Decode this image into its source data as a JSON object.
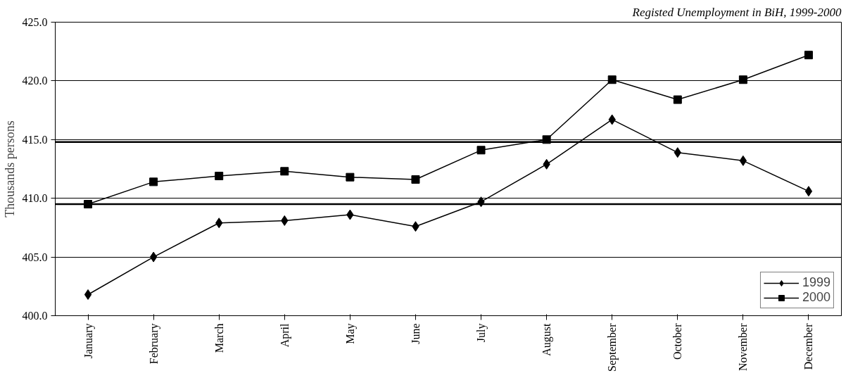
{
  "chart_data": {
    "type": "line",
    "title": "Registed Unemployment in BiH, 1999-2000",
    "ylabel": "Thousands persons",
    "categories": [
      "January",
      "February",
      "March",
      "April",
      "May",
      "June",
      "July",
      "August",
      "September",
      "October",
      "November",
      "December"
    ],
    "series": [
      {
        "name": "1999",
        "color": "#000000",
        "marker": "diamond",
        "values": [
          401.8,
          405.0,
          407.9,
          408.1,
          408.6,
          407.6,
          409.7,
          412.9,
          416.7,
          413.9,
          413.2,
          410.6
        ]
      },
      {
        "name": "2000",
        "color": "#000000",
        "marker": "square",
        "values": [
          409.5,
          411.4,
          411.9,
          412.3,
          411.8,
          411.6,
          414.1,
          415.0,
          420.1,
          418.4,
          420.1,
          422.2
        ]
      }
    ],
    "ylim": [
      400,
      425
    ],
    "yticks": [
      {
        "value": 400,
        "label": "400.0"
      },
      {
        "value": 405,
        "label": "405.0"
      },
      {
        "value": 410,
        "label": "410.0"
      },
      {
        "value": 415,
        "label": "415.0"
      },
      {
        "value": 420,
        "label": "420.0"
      },
      {
        "value": 425,
        "label": "425.0"
      }
    ],
    "ref_lines": [
      {
        "axis": "y",
        "value": 414.8,
        "color": "#000000"
      },
      {
        "axis": "y",
        "value": 409.5,
        "color": "#000000"
      }
    ],
    "grid": "y",
    "legend": "bottom right",
    "line_style": "solid"
  }
}
